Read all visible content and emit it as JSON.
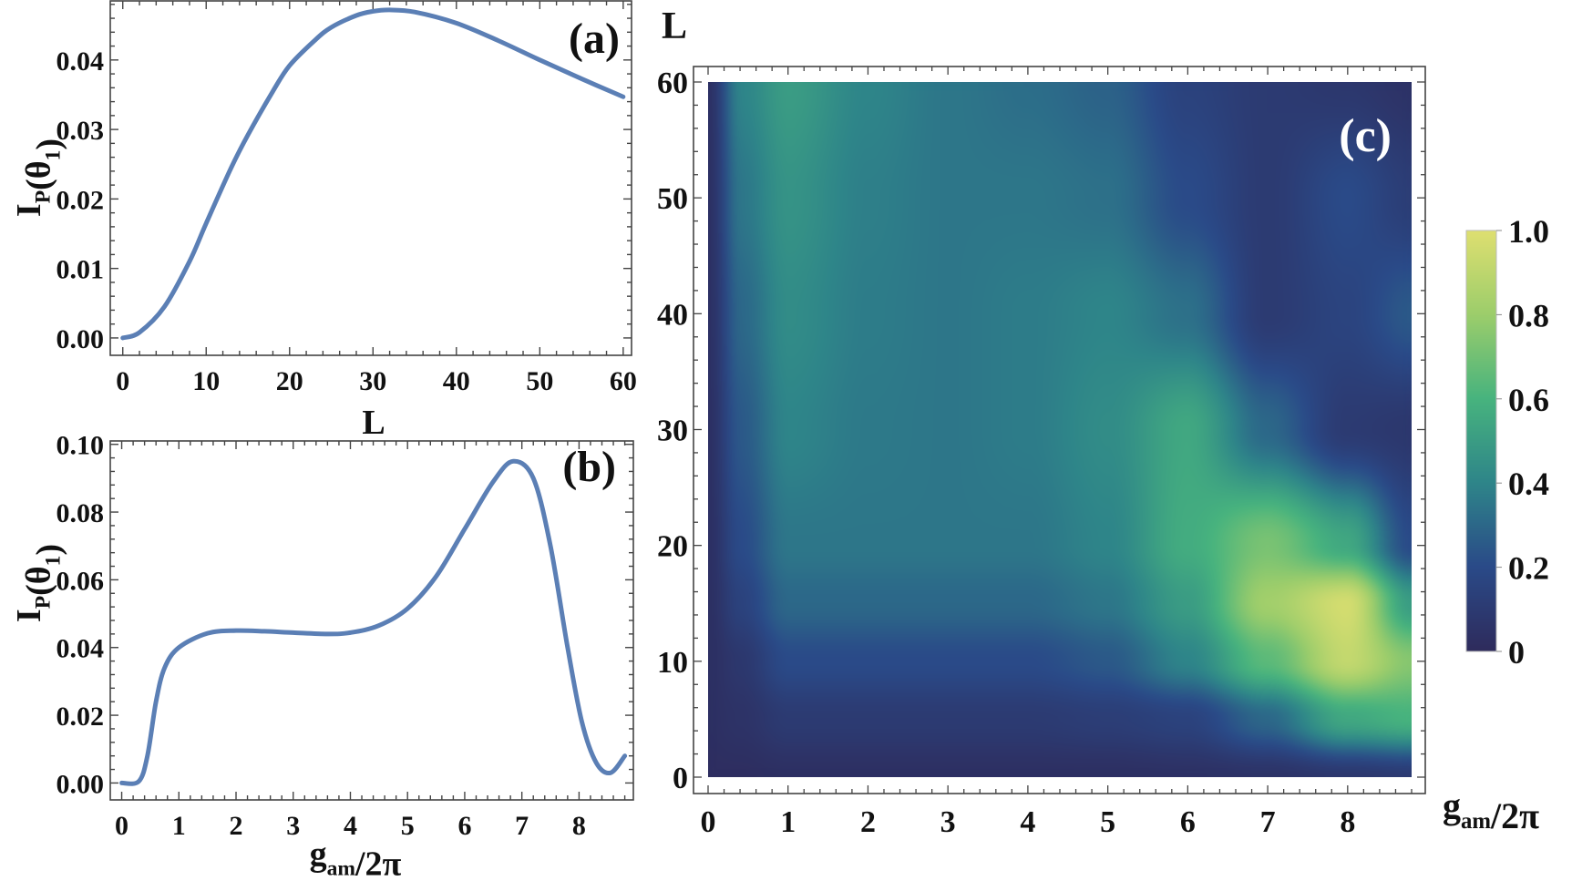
{
  "chart_data": [
    {
      "type": "line",
      "panel_label": "(a)",
      "xlabel": "L",
      "ylabel": "I_{P}(θ_{1})",
      "xlim": [
        -1.5,
        61
      ],
      "ylim": [
        -0.0025,
        0.0485
      ],
      "xticks": [
        0,
        10,
        20,
        30,
        40,
        50,
        60
      ],
      "xtick_labels": [
        "0",
        "10",
        "20",
        "30",
        "40",
        "50",
        "60"
      ],
      "yticks": [
        0.0,
        0.01,
        0.02,
        0.03,
        0.04
      ],
      "ytick_labels": [
        "0.00",
        "0.01",
        "0.02",
        "0.03",
        "0.04"
      ],
      "line_color": "#5b7fb5",
      "x": [
        0,
        2,
        5,
        8,
        10,
        13,
        15,
        18,
        20,
        23,
        25,
        28,
        30,
        32,
        35,
        40,
        45,
        50,
        55,
        60
      ],
      "y": [
        0,
        0.0008,
        0.0045,
        0.011,
        0.0165,
        0.0245,
        0.0292,
        0.0355,
        0.0392,
        0.0428,
        0.0447,
        0.0464,
        0.047,
        0.0472,
        0.0469,
        0.0453,
        0.0428,
        0.04,
        0.0373,
        0.0347
      ]
    },
    {
      "type": "line",
      "panel_label": "(b)",
      "xlabel": "g_{am}/2π",
      "ylabel": "I_{P}(θ_{1})",
      "xlim": [
        -0.2,
        8.95
      ],
      "ylim": [
        -0.005,
        0.101
      ],
      "xticks": [
        0,
        1,
        2,
        3,
        4,
        5,
        6,
        7,
        8
      ],
      "xtick_labels": [
        "0",
        "1",
        "2",
        "3",
        "4",
        "5",
        "6",
        "7",
        "8"
      ],
      "yticks": [
        0.0,
        0.02,
        0.04,
        0.06,
        0.08,
        0.1
      ],
      "ytick_labels": [
        "0.00",
        "0.02",
        "0.04",
        "0.06",
        "0.08",
        "0.10"
      ],
      "line_color": "#5b7fb5",
      "x": [
        0,
        0.3,
        0.45,
        0.6,
        0.75,
        1.0,
        1.5,
        2.0,
        2.5,
        3.0,
        3.6,
        4.0,
        4.5,
        5.0,
        5.5,
        6.0,
        6.5,
        6.85,
        7.2,
        7.5,
        7.8,
        8.05,
        8.3,
        8.55,
        8.8
      ],
      "y": [
        0,
        0.0005,
        0.008,
        0.024,
        0.034,
        0.04,
        0.0442,
        0.045,
        0.0448,
        0.0444,
        0.044,
        0.0444,
        0.0465,
        0.0515,
        0.061,
        0.075,
        0.089,
        0.095,
        0.09,
        0.07,
        0.04,
        0.018,
        0.006,
        0.003,
        0.008
      ]
    },
    {
      "type": "heatmap",
      "panel_label": "(c)",
      "xlabel": "g_{am}/2π",
      "ylabel": "L",
      "xlim": [
        0,
        8.8
      ],
      "ylim": [
        0,
        60
      ],
      "xticks": [
        0,
        1,
        2,
        3,
        4,
        5,
        6,
        7,
        8
      ],
      "xtick_labels": [
        "0",
        "1",
        "2",
        "3",
        "4",
        "5",
        "6",
        "7",
        "8"
      ],
      "yticks": [
        0,
        10,
        20,
        30,
        40,
        50,
        60
      ],
      "ytick_labels": [
        "0",
        "10",
        "20",
        "30",
        "40",
        "50",
        "60"
      ],
      "colorbar": {
        "range": [
          0,
          1
        ],
        "ticks": [
          0,
          0.2,
          0.4,
          0.6,
          0.8,
          1.0
        ],
        "tick_labels": [
          "0",
          "0.2",
          "0.4",
          "0.6",
          "0.8",
          "1.0"
        ],
        "colors": [
          "#2e2b5c",
          "#2a4a88",
          "#2e8589",
          "#47b37e",
          "#9ccd6b",
          "#dedf70"
        ]
      },
      "grid_x": [
        0,
        0.4,
        1,
        2,
        3,
        4,
        5,
        6,
        7,
        8,
        8.8
      ],
      "grid_y": [
        0,
        5,
        10,
        15,
        20,
        30,
        40,
        50,
        60
      ],
      "z": [
        [
          0.02,
          0.02,
          0.03,
          0.03,
          0.03,
          0.03,
          0.03,
          0.04,
          0.05,
          0.08,
          0.1
        ],
        [
          0.03,
          0.05,
          0.1,
          0.1,
          0.1,
          0.1,
          0.12,
          0.15,
          0.3,
          0.55,
          0.6
        ],
        [
          0.03,
          0.08,
          0.2,
          0.2,
          0.2,
          0.2,
          0.25,
          0.4,
          0.65,
          0.92,
          0.75
        ],
        [
          0.03,
          0.15,
          0.3,
          0.3,
          0.3,
          0.3,
          0.35,
          0.5,
          0.82,
          0.97,
          0.5
        ],
        [
          0.03,
          0.2,
          0.35,
          0.35,
          0.35,
          0.35,
          0.4,
          0.57,
          0.72,
          0.55,
          0.2
        ],
        [
          0.03,
          0.25,
          0.4,
          0.36,
          0.35,
          0.37,
          0.43,
          0.55,
          0.3,
          0.1,
          0.08
        ],
        [
          0.03,
          0.3,
          0.43,
          0.37,
          0.35,
          0.37,
          0.4,
          0.33,
          0.1,
          0.16,
          0.25
        ],
        [
          0.03,
          0.35,
          0.46,
          0.38,
          0.35,
          0.35,
          0.33,
          0.2,
          0.1,
          0.2,
          0.12
        ],
        [
          0.03,
          0.4,
          0.5,
          0.4,
          0.35,
          0.32,
          0.28,
          0.15,
          0.1,
          0.08,
          0.05
        ]
      ]
    }
  ]
}
